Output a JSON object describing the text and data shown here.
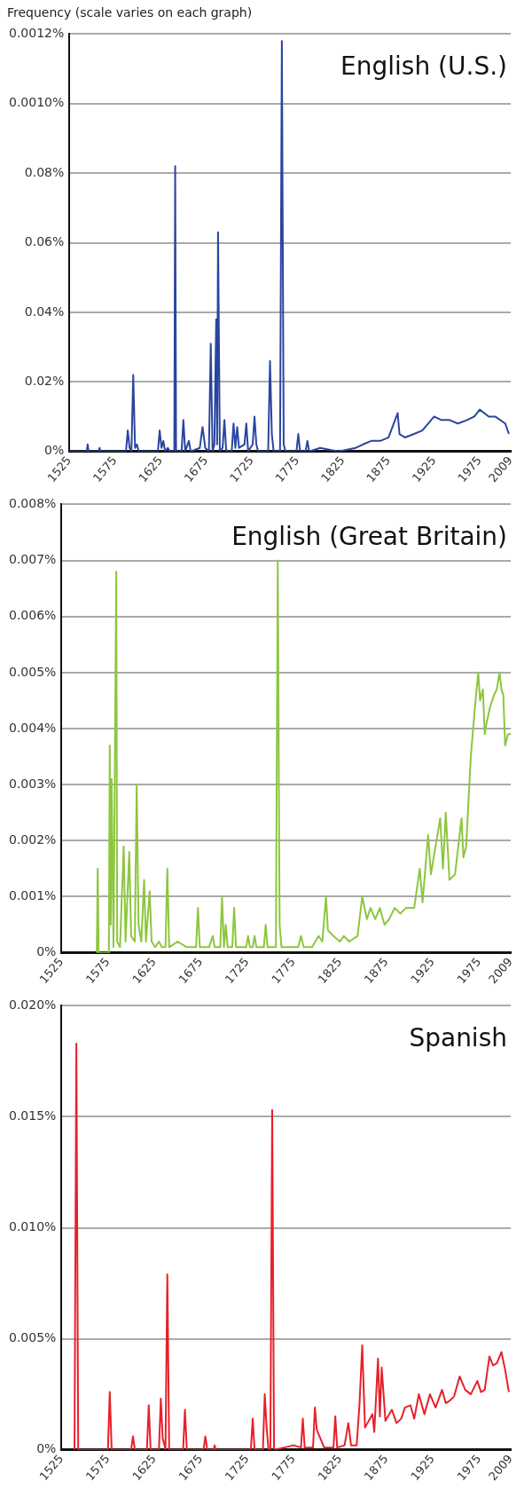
{
  "chart_data": [
    {
      "type": "line",
      "title": "English (U.S.)",
      "ylabel": "Frequency (scale varies on each graph)",
      "grid": "y",
      "legend": false,
      "xlim": [
        1525,
        2009
      ],
      "xticks": [
        1525,
        1575,
        1625,
        1675,
        1725,
        1775,
        1825,
        1875,
        1925,
        1975,
        2009
      ],
      "ylim": [
        0,
        0.0012
      ],
      "yticks": [
        {
          "value": 0,
          "label": "0%"
        },
        {
          "value": 0.0002,
          "label": "0.02%"
        },
        {
          "value": 0.0004,
          "label": "0.04%"
        },
        {
          "value": 0.0006,
          "label": "0.06%"
        },
        {
          "value": 0.0008,
          "label": "0.08%"
        },
        {
          "value": 0.001,
          "label": "0.0010%"
        },
        {
          "value": 0.0012,
          "label": "0.0012%"
        }
      ],
      "series": [
        {
          "color": "#2a45a0",
          "x": [
            1525,
            1544,
            1545,
            1546,
            1557,
            1558,
            1559,
            1587,
            1589,
            1591,
            1593,
            1595,
            1597,
            1599,
            1601,
            1622,
            1624,
            1626,
            1628,
            1630,
            1633,
            1635,
            1640,
            1641,
            1642,
            1648,
            1650,
            1652,
            1656,
            1658,
            1668,
            1671,
            1674,
            1678,
            1680,
            1682,
            1684,
            1686,
            1687,
            1688,
            1690,
            1693,
            1695,
            1697,
            1703,
            1705,
            1707,
            1709,
            1711,
            1717,
            1719,
            1721,
            1726,
            1728,
            1730,
            1732,
            1743,
            1745,
            1747,
            1749,
            1756,
            1758,
            1760,
            1762,
            1774,
            1776,
            1778,
            1784,
            1786,
            1788,
            1800,
            1820,
            1839,
            1847,
            1856,
            1866,
            1875,
            1885,
            1887,
            1893,
            1903,
            1912,
            1925,
            1933,
            1942,
            1951,
            1961,
            1969,
            1975,
            1985,
            1992,
            2003,
            2007
          ],
          "values": [
            0,
            0,
            2e-05,
            0,
            0,
            1e-05,
            0,
            0,
            6e-05,
            1e-05,
            0,
            0.00022,
            1e-05,
            2e-05,
            0,
            0,
            6e-05,
            1e-05,
            3e-05,
            0,
            1e-05,
            0,
            0,
            0.00082,
            0,
            0,
            9e-05,
            0,
            3e-05,
            0,
            1e-05,
            7e-05,
            1e-05,
            0,
            0.00031,
            0,
            2e-05,
            0.00038,
            2e-05,
            0.00063,
            0,
            1e-05,
            9e-05,
            0,
            0,
            8e-05,
            1e-05,
            7e-05,
            1e-05,
            2e-05,
            8e-05,
            0,
            2e-05,
            0.0001,
            2e-05,
            0,
            0,
            0.00026,
            5e-05,
            0,
            0,
            0.00118,
            2e-05,
            0,
            0,
            5e-05,
            0,
            0,
            3e-05,
            0,
            1e-05,
            0,
            1e-05,
            2e-05,
            3e-05,
            3e-05,
            4e-05,
            0.00011,
            5e-05,
            4e-05,
            5e-05,
            6e-05,
            0.0001,
            9e-05,
            9e-05,
            8e-05,
            9e-05,
            0.0001,
            0.00012,
            0.0001,
            0.0001,
            8e-05,
            5e-05
          ]
        }
      ]
    },
    {
      "type": "line",
      "title": "English (Great Britain)",
      "grid": "y",
      "legend": false,
      "xlim": [
        1525,
        2009
      ],
      "xticks": [
        1525,
        1575,
        1625,
        1675,
        1725,
        1775,
        1825,
        1875,
        1925,
        1975,
        2009
      ],
      "ylim": [
        0,
        0.008
      ],
      "yticks": [
        {
          "value": 0,
          "label": "0%"
        },
        {
          "value": 0.001,
          "label": "0.001%"
        },
        {
          "value": 0.002,
          "label": "0.002%"
        },
        {
          "value": 0.003,
          "label": "0.003%"
        },
        {
          "value": 0.004,
          "label": "0.004%"
        },
        {
          "value": 0.005,
          "label": "0.005%"
        },
        {
          "value": 0.006,
          "label": "0.006%"
        },
        {
          "value": 0.007,
          "label": "0.007%"
        },
        {
          "value": 0.008,
          "label": "0.008%"
        }
      ],
      "series": [
        {
          "color": "#8dc63f",
          "x": [
            1563,
            1564,
            1565,
            1576,
            1577,
            1578,
            1579,
            1581,
            1584,
            1585,
            1588,
            1592,
            1594,
            1598,
            1600,
            1604,
            1606,
            1608,
            1611,
            1614,
            1616,
            1620,
            1622,
            1626,
            1630,
            1633,
            1637,
            1639,
            1641,
            1650,
            1660,
            1670,
            1672,
            1674,
            1684,
            1688,
            1690,
            1696,
            1698,
            1700,
            1702,
            1704,
            1709,
            1711,
            1713,
            1724,
            1726,
            1728,
            1731,
            1733,
            1735,
            1743,
            1745,
            1747,
            1756,
            1758,
            1760,
            1762,
            1770,
            1780,
            1783,
            1786,
            1795,
            1802,
            1806,
            1810,
            1812,
            1818,
            1825,
            1829,
            1835,
            1844,
            1849,
            1854,
            1858,
            1863,
            1868,
            1873,
            1878,
            1884,
            1890,
            1896,
            1901,
            1905,
            1911,
            1914,
            1920,
            1923,
            1927,
            1933,
            1936,
            1939,
            1943,
            1949,
            1956,
            1958,
            1961,
            1966,
            1970,
            1974,
            1976,
            1979,
            1981,
            1983,
            1987,
            1991,
            1994,
            1997,
            1999,
            2001,
            2003,
            2006,
            2009
          ],
          "values": [
            0,
            0.0015,
            0,
            0,
            0.0037,
            0.0005,
            0.0031,
            0.0001,
            0.0068,
            0.0002,
            0.0001,
            0.0019,
            0.0002,
            0.0018,
            0.0003,
            0.0002,
            0.003,
            0.0005,
            0.0002,
            0.0013,
            0.0002,
            0.0011,
            0.0002,
            0.0001,
            0.0002,
            0.0001,
            0.0001,
            0.0015,
            0.0001,
            0.0002,
            0.0001,
            0.0001,
            0.0008,
            0.0001,
            0.0001,
            0.0003,
            0.0001,
            0.0001,
            0.001,
            0.0001,
            0.0005,
            0.0001,
            0.0001,
            0.0008,
            0.0001,
            0.0001,
            0.0003,
            0.0001,
            0.0001,
            0.0003,
            0.0001,
            0.0001,
            0.0005,
            0.0001,
            0.0001,
            0.007,
            0.0005,
            0.0001,
            0.0001,
            0.0001,
            0.0003,
            0.0001,
            0.0001,
            0.0003,
            0.0002,
            0.001,
            0.0004,
            0.0003,
            0.0002,
            0.0003,
            0.0002,
            0.0003,
            0.001,
            0.0006,
            0.0008,
            0.0006,
            0.0008,
            0.0005,
            0.0006,
            0.0008,
            0.0007,
            0.0008,
            0.0008,
            0.0008,
            0.0015,
            0.0009,
            0.0021,
            0.0014,
            0.0018,
            0.0024,
            0.0015,
            0.0025,
            0.0013,
            0.0014,
            0.0024,
            0.0017,
            0.0019,
            0.0035,
            0.0043,
            0.005,
            0.0045,
            0.0047,
            0.0039,
            0.0041,
            0.0044,
            0.0046,
            0.0047,
            0.005,
            0.0047,
            0.0046,
            0.0037,
            0.0039,
            0.0039
          ]
        }
      ]
    },
    {
      "type": "line",
      "title": "Spanish",
      "grid": "y",
      "legend": false,
      "xlim": [
        1525,
        2009
      ],
      "xticks": [
        1525,
        1575,
        1625,
        1675,
        1725,
        1775,
        1825,
        1875,
        1925,
        1975,
        2009
      ],
      "ylim": [
        0,
        0.02
      ],
      "yticks": [
        {
          "value": 0,
          "label": "0%"
        },
        {
          "value": 0.005,
          "label": "0.005%"
        },
        {
          "value": 0.01,
          "label": "0.010%"
        },
        {
          "value": 0.015,
          "label": "0.015%"
        },
        {
          "value": 0.02,
          "label": "0.020%"
        }
      ],
      "series": [
        {
          "color": "#e8202a",
          "x": [
            1539,
            1541,
            1543,
            1575,
            1577,
            1579,
            1600,
            1602,
            1604,
            1617,
            1619,
            1621,
            1630,
            1632,
            1634,
            1636,
            1637,
            1639,
            1641,
            1656,
            1658,
            1660,
            1678,
            1680,
            1682,
            1689,
            1690,
            1691,
            1729,
            1731,
            1733,
            1742,
            1744,
            1746,
            1748,
            1750,
            1752,
            1754,
            1765,
            1775,
            1783,
            1785,
            1787,
            1796,
            1798,
            1800,
            1804,
            1808,
            1818,
            1820,
            1822,
            1830,
            1834,
            1837,
            1843,
            1846,
            1849,
            1852,
            1856,
            1860,
            1862,
            1866,
            1868,
            1870,
            1874,
            1881,
            1886,
            1891,
            1895,
            1901,
            1905,
            1910,
            1916,
            1922,
            1928,
            1935,
            1939,
            1943,
            1948,
            1954,
            1960,
            1966,
            1973,
            1977,
            1981,
            1986,
            1990,
            1994,
            1999,
            2003,
            2007
          ],
          "values": [
            0,
            0.0183,
            0,
            0,
            0.0026,
            0,
            0,
            0.0006,
            0,
            0,
            0.002,
            0,
            0,
            0.0023,
            0.0005,
            0.0002,
            0,
            0.0079,
            0,
            0,
            0.0018,
            0,
            0,
            0.0006,
            0,
            0,
            0.0002,
            0,
            0,
            0.0014,
            0,
            0,
            0.0025,
            0.001,
            0,
            0,
            0.0153,
            0,
            0.0001,
            0.0002,
            0.0001,
            0.0014,
            0.0001,
            0.0001,
            0.0019,
            0.0009,
            0.0005,
            0.0001,
            0.0001,
            0.0015,
            0.0001,
            0.0002,
            0.0012,
            0.0002,
            0.0002,
            0.002,
            0.0047,
            0.001,
            0.0013,
            0.0016,
            0.0008,
            0.0041,
            0.0015,
            0.0037,
            0.0013,
            0.0018,
            0.0012,
            0.0014,
            0.0019,
            0.002,
            0.0014,
            0.0025,
            0.0016,
            0.0025,
            0.0019,
            0.0027,
            0.0021,
            0.0022,
            0.0024,
            0.0033,
            0.0027,
            0.0025,
            0.0031,
            0.0026,
            0.0027,
            0.0042,
            0.0038,
            0.0039,
            0.0044,
            0.0036,
            0.0026
          ]
        }
      ]
    }
  ]
}
